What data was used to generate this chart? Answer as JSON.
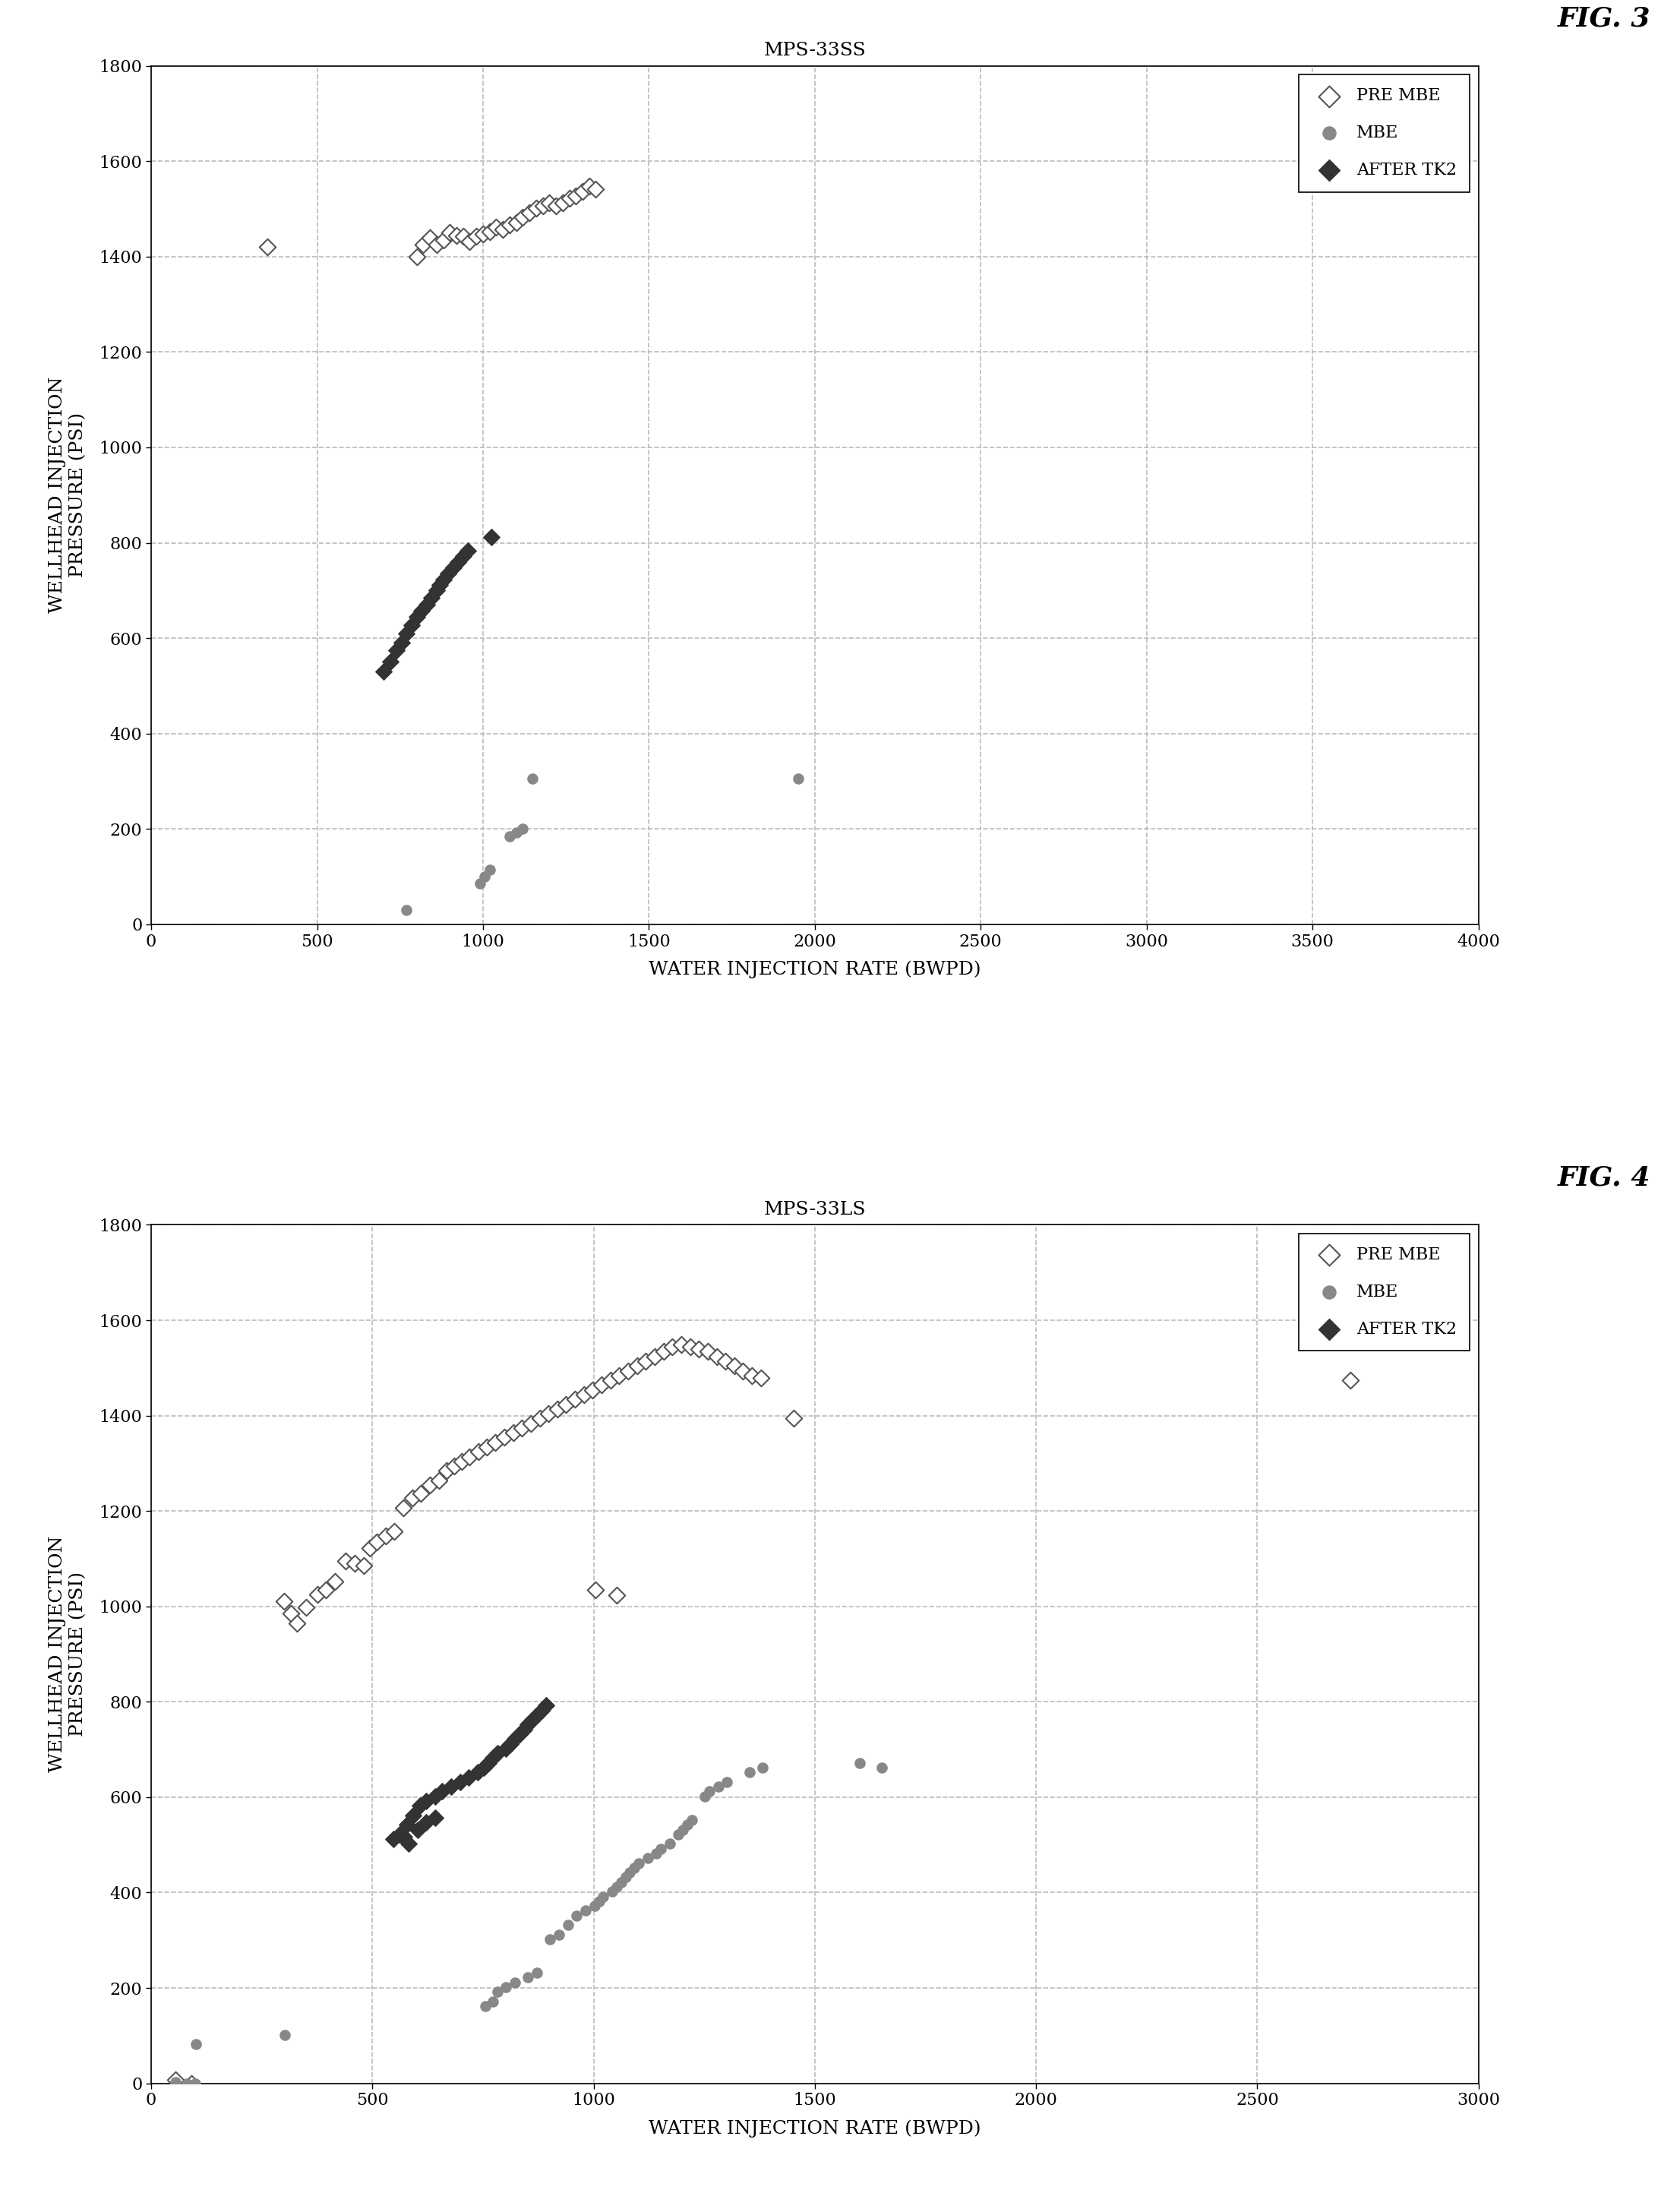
{
  "fig3": {
    "title": "MPS-33SS",
    "fig_label": "FIG. 3",
    "xlim": [
      0,
      4000
    ],
    "ylim": [
      0,
      1800
    ],
    "xticks": [
      0,
      500,
      1000,
      1500,
      2000,
      2500,
      3000,
      3500,
      4000
    ],
    "yticks": [
      0,
      200,
      400,
      600,
      800,
      1000,
      1200,
      1400,
      1600,
      1800
    ],
    "xlabel": "WATER INJECTION RATE (BWPD)",
    "ylabel": "WELLHEAD INJECTION\nPRESSURE (PSI)",
    "pre_mbe": [
      [
        350,
        1420
      ],
      [
        800,
        1400
      ],
      [
        820,
        1425
      ],
      [
        840,
        1440
      ],
      [
        860,
        1425
      ],
      [
        880,
        1435
      ],
      [
        900,
        1450
      ],
      [
        920,
        1445
      ],
      [
        940,
        1442
      ],
      [
        960,
        1432
      ],
      [
        980,
        1442
      ],
      [
        1000,
        1447
      ],
      [
        1020,
        1452
      ],
      [
        1040,
        1462
      ],
      [
        1060,
        1457
      ],
      [
        1080,
        1467
      ],
      [
        1100,
        1472
      ],
      [
        1120,
        1482
      ],
      [
        1140,
        1492
      ],
      [
        1160,
        1502
      ],
      [
        1180,
        1507
      ],
      [
        1200,
        1512
      ],
      [
        1220,
        1507
      ],
      [
        1240,
        1512
      ],
      [
        1260,
        1522
      ],
      [
        1280,
        1527
      ],
      [
        1300,
        1537
      ],
      [
        1320,
        1547
      ],
      [
        1340,
        1542
      ]
    ],
    "mbe": [
      [
        770,
        30
      ],
      [
        990,
        85
      ],
      [
        1005,
        100
      ],
      [
        1020,
        115
      ],
      [
        1080,
        185
      ],
      [
        1100,
        192
      ],
      [
        1120,
        200
      ],
      [
        1150,
        305
      ],
      [
        1950,
        305
      ]
    ],
    "after_tk2": [
      [
        700,
        530
      ],
      [
        720,
        550
      ],
      [
        740,
        575
      ],
      [
        755,
        590
      ],
      [
        770,
        610
      ],
      [
        785,
        628
      ],
      [
        800,
        645
      ],
      [
        815,
        658
      ],
      [
        830,
        670
      ],
      [
        845,
        685
      ],
      [
        860,
        700
      ],
      [
        870,
        712
      ],
      [
        880,
        722
      ],
      [
        895,
        735
      ],
      [
        910,
        748
      ],
      [
        925,
        760
      ],
      [
        940,
        772
      ],
      [
        955,
        783
      ],
      [
        1025,
        812
      ]
    ]
  },
  "fig4": {
    "title": "MPS-33LS",
    "fig_label": "FIG. 4",
    "xlim": [
      0,
      3000
    ],
    "ylim": [
      0,
      1800
    ],
    "xticks": [
      0,
      500,
      1000,
      1500,
      2000,
      2500,
      3000
    ],
    "yticks": [
      0,
      200,
      400,
      600,
      800,
      1000,
      1200,
      1400,
      1600,
      1800
    ],
    "xlabel": "WATER INJECTION RATE (BWPD)",
    "ylabel": "WELLHEAD INJECTION\nPRESSURE (PSI)",
    "pre_mbe": [
      [
        55,
        8
      ],
      [
        90,
        0
      ],
      [
        300,
        1010
      ],
      [
        315,
        985
      ],
      [
        330,
        965
      ],
      [
        350,
        998
      ],
      [
        375,
        1025
      ],
      [
        395,
        1035
      ],
      [
        415,
        1052
      ],
      [
        440,
        1095
      ],
      [
        460,
        1090
      ],
      [
        480,
        1085
      ],
      [
        495,
        1122
      ],
      [
        510,
        1135
      ],
      [
        530,
        1147
      ],
      [
        550,
        1157
      ],
      [
        570,
        1207
      ],
      [
        590,
        1227
      ],
      [
        610,
        1237
      ],
      [
        630,
        1254
      ],
      [
        650,
        1264
      ],
      [
        668,
        1284
      ],
      [
        685,
        1294
      ],
      [
        702,
        1304
      ],
      [
        720,
        1314
      ],
      [
        740,
        1324
      ],
      [
        758,
        1334
      ],
      [
        778,
        1344
      ],
      [
        798,
        1354
      ],
      [
        818,
        1364
      ],
      [
        838,
        1374
      ],
      [
        858,
        1384
      ],
      [
        878,
        1394
      ],
      [
        898,
        1404
      ],
      [
        918,
        1414
      ],
      [
        938,
        1424
      ],
      [
        958,
        1434
      ],
      [
        978,
        1444
      ],
      [
        998,
        1454
      ],
      [
        1018,
        1464
      ],
      [
        1038,
        1474
      ],
      [
        1058,
        1484
      ],
      [
        1078,
        1494
      ],
      [
        1098,
        1504
      ],
      [
        1118,
        1514
      ],
      [
        1138,
        1524
      ],
      [
        1158,
        1534
      ],
      [
        1178,
        1544
      ],
      [
        1198,
        1549
      ],
      [
        1218,
        1544
      ],
      [
        1238,
        1539
      ],
      [
        1258,
        1534
      ],
      [
        1278,
        1524
      ],
      [
        1298,
        1514
      ],
      [
        1318,
        1504
      ],
      [
        1338,
        1494
      ],
      [
        1358,
        1484
      ],
      [
        1378,
        1479
      ],
      [
        1452,
        1394
      ],
      [
        1005,
        1034
      ],
      [
        1052,
        1024
      ],
      [
        2710,
        1474
      ]
    ],
    "mbe": [
      [
        55,
        2
      ],
      [
        80,
        0
      ],
      [
        100,
        0
      ],
      [
        302,
        102
      ],
      [
        755,
        162
      ],
      [
        772,
        172
      ],
      [
        782,
        192
      ],
      [
        802,
        202
      ],
      [
        822,
        212
      ],
      [
        852,
        222
      ],
      [
        872,
        232
      ],
      [
        902,
        302
      ],
      [
        922,
        312
      ],
      [
        942,
        332
      ],
      [
        962,
        352
      ],
      [
        982,
        362
      ],
      [
        1002,
        372
      ],
      [
        1012,
        382
      ],
      [
        1022,
        392
      ],
      [
        1042,
        402
      ],
      [
        1052,
        412
      ],
      [
        1062,
        422
      ],
      [
        1072,
        432
      ],
      [
        1082,
        442
      ],
      [
        1092,
        452
      ],
      [
        1102,
        462
      ],
      [
        1122,
        472
      ],
      [
        1142,
        482
      ],
      [
        1152,
        492
      ],
      [
        1172,
        502
      ],
      [
        1192,
        522
      ],
      [
        1202,
        532
      ],
      [
        1212,
        542
      ],
      [
        1222,
        552
      ],
      [
        1252,
        602
      ],
      [
        1262,
        612
      ],
      [
        1282,
        622
      ],
      [
        1302,
        632
      ],
      [
        1352,
        652
      ],
      [
        1382,
        662
      ],
      [
        1602,
        672
      ],
      [
        1652,
        662
      ],
      [
        102,
        82
      ]
    ],
    "after_tk2": [
      [
        548,
        512
      ],
      [
        562,
        522
      ],
      [
        578,
        542
      ],
      [
        592,
        562
      ],
      [
        608,
        582
      ],
      [
        622,
        592
      ],
      [
        642,
        602
      ],
      [
        658,
        612
      ],
      [
        678,
        622
      ],
      [
        698,
        632
      ],
      [
        718,
        642
      ],
      [
        738,
        652
      ],
      [
        752,
        662
      ],
      [
        762,
        672
      ],
      [
        772,
        682
      ],
      [
        782,
        692
      ],
      [
        802,
        702
      ],
      [
        812,
        712
      ],
      [
        822,
        722
      ],
      [
        832,
        732
      ],
      [
        842,
        742
      ],
      [
        852,
        752
      ],
      [
        862,
        762
      ],
      [
        872,
        772
      ],
      [
        882,
        782
      ],
      [
        892,
        792
      ],
      [
        602,
        532
      ],
      [
        622,
        547
      ],
      [
        642,
        557
      ],
      [
        582,
        502
      ],
      [
        572,
        517
      ]
    ]
  },
  "pre_mbe_color": "white",
  "pre_mbe_edge": "#555555",
  "mbe_color": "#888888",
  "after_tk2_color": "#333333",
  "background": "#ffffff",
  "grid_color": "#bbbbbb"
}
